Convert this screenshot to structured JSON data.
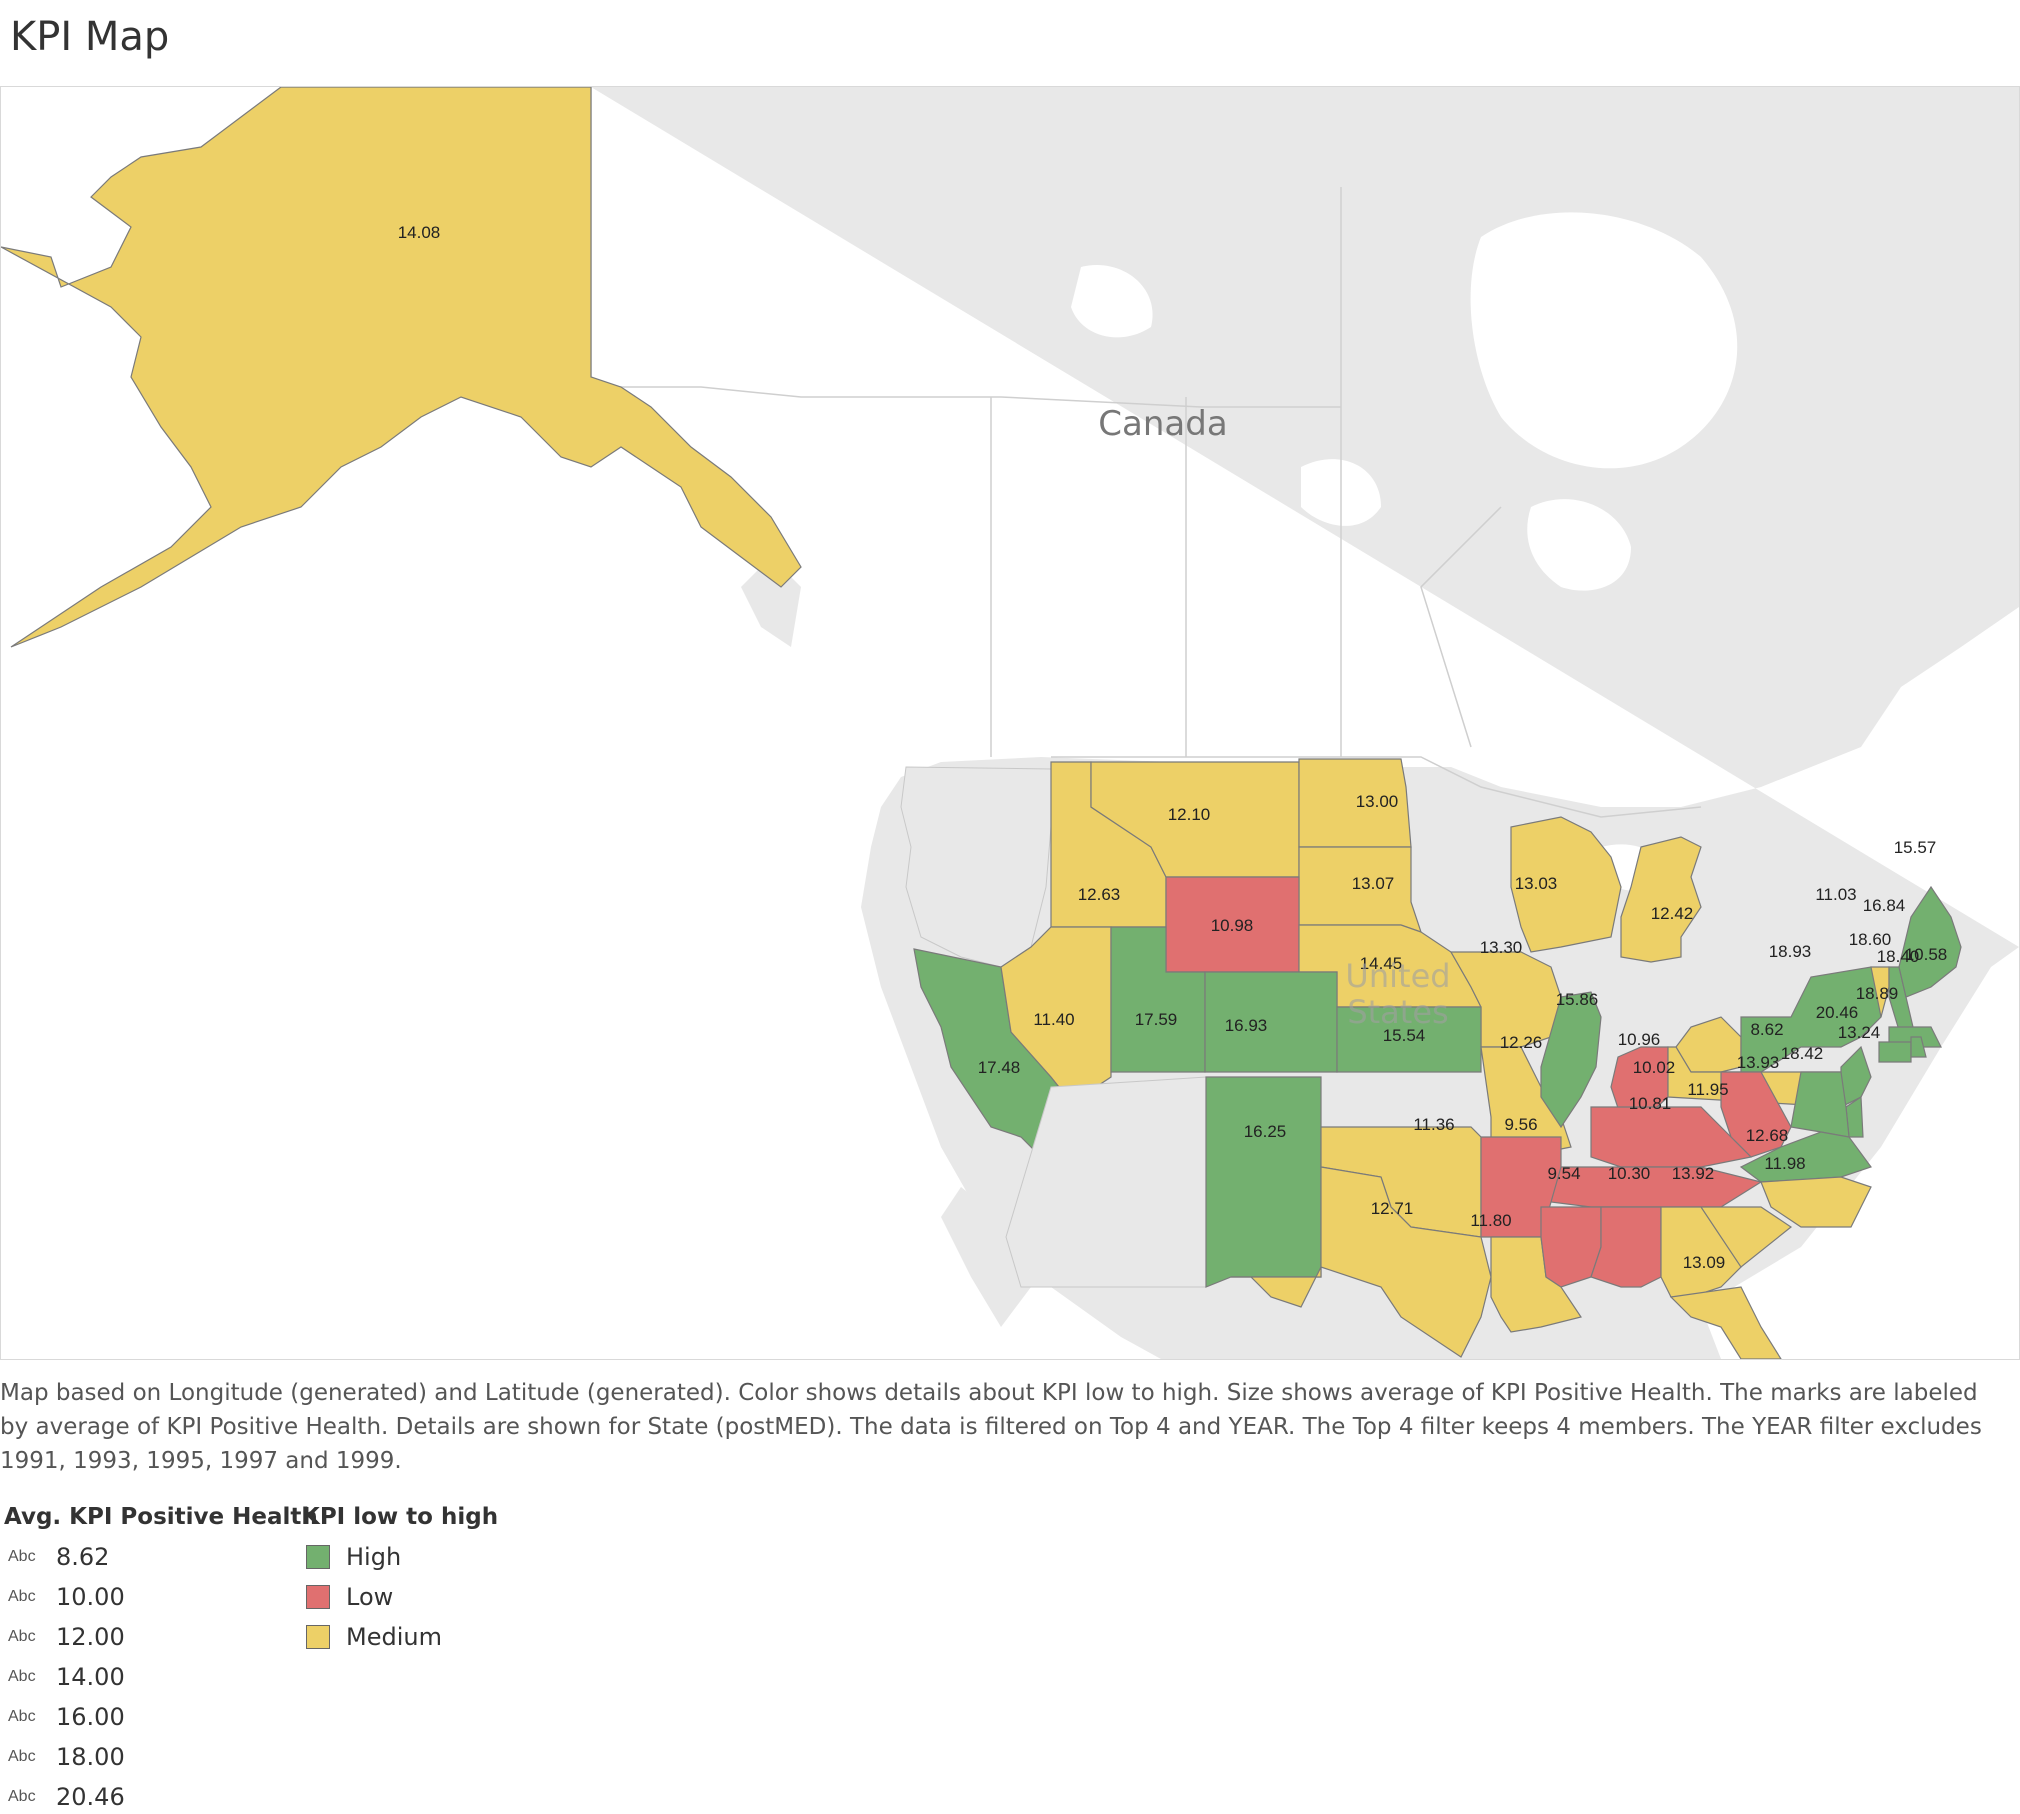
{
  "title": "KPI Map",
  "map": {
    "country_labels": [
      "Canada",
      "United",
      "States"
    ],
    "colors": {
      "High": "#73b06f",
      "Low": "#e07070",
      "Medium": "#edd067",
      "land": "#e8e8e8",
      "water": "#ffffff",
      "border": "#c8c8c8",
      "state_outline": "#7a7a7a"
    },
    "regions": [
      {
        "state": "Alaska",
        "value": "14.08",
        "category": "Medium"
      },
      {
        "state": "Washington/Oregon",
        "value": "",
        "category": "Unshaded"
      },
      {
        "state": "Idaho",
        "value": "12.63",
        "category": "Medium"
      },
      {
        "state": "Montana",
        "value": "12.10",
        "category": "Medium"
      },
      {
        "state": "North Dakota",
        "value": "13.00",
        "category": "Medium"
      },
      {
        "state": "South Dakota",
        "value": "13.07",
        "category": "Medium"
      },
      {
        "state": "Wyoming",
        "value": "10.98",
        "category": "Low"
      },
      {
        "state": "Nebraska",
        "value": "14.45",
        "category": "Medium"
      },
      {
        "state": "Iowa",
        "value": "13.30",
        "category": "Medium"
      },
      {
        "state": "Wisconsin",
        "value": "13.03",
        "category": "Medium"
      },
      {
        "state": "Michigan",
        "value": "12.42",
        "category": "Medium"
      },
      {
        "state": "California",
        "value": "17.48",
        "category": "High"
      },
      {
        "state": "Nevada",
        "value": "11.40",
        "category": "Medium"
      },
      {
        "state": "Utah",
        "value": "17.59",
        "category": "High"
      },
      {
        "state": "Colorado",
        "value": "16.93",
        "category": "High"
      },
      {
        "state": "Kansas",
        "value": "15.54",
        "category": "High"
      },
      {
        "state": "Missouri",
        "value": "12.26",
        "category": "Medium"
      },
      {
        "state": "Illinois",
        "value": "15.86",
        "category": "High"
      },
      {
        "state": "Indiana",
        "value": "10.96",
        "category": "Low"
      },
      {
        "state": "Ohio",
        "value": "11.95",
        "category": "Medium"
      },
      {
        "state": "Pennsylvania",
        "value": "13.93",
        "category": "Medium"
      },
      {
        "state": "New York",
        "value": "18.93",
        "category": "High"
      },
      {
        "state": "Vermont",
        "value": "11.03",
        "category": "Medium"
      },
      {
        "state": "New Hampshire",
        "value": "16.84",
        "category": "High"
      },
      {
        "state": "Maine",
        "value": "15.57",
        "category": "High"
      },
      {
        "state": "Massachusetts",
        "value": "18.60",
        "category": "High"
      },
      {
        "state": "Connecticut",
        "value": "18.40",
        "category": "High"
      },
      {
        "state": "Rhode Island",
        "value": "10.58",
        "category": "High"
      },
      {
        "state": "New Jersey",
        "value": "18.89",
        "category": "High"
      },
      {
        "state": "Delaware",
        "value": "13.24",
        "category": "High"
      },
      {
        "state": "Maryland",
        "value": "20.46",
        "category": "High"
      },
      {
        "state": "West Virginia",
        "value": "8.62",
        "category": "Low"
      },
      {
        "state": "Virginia",
        "value": "18.42",
        "category": "High"
      },
      {
        "state": "Kentucky",
        "value": "10.02",
        "category": "Low"
      },
      {
        "state": "Tennessee",
        "value": "10.81",
        "category": "Low"
      },
      {
        "state": "North Carolina",
        "value": "12.68",
        "category": "Medium"
      },
      {
        "state": "South Carolina",
        "value": "11.98",
        "category": "Medium"
      },
      {
        "state": "Arizona",
        "value": "",
        "category": "Unshaded"
      },
      {
        "state": "New Mexico",
        "value": "16.25",
        "category": "High"
      },
      {
        "state": "Oklahoma",
        "value": "11.36",
        "category": "Medium"
      },
      {
        "state": "Arkansas",
        "value": "9.56",
        "category": "Low"
      },
      {
        "state": "Texas",
        "value": "12.71",
        "category": "Medium"
      },
      {
        "state": "Louisiana",
        "value": "11.80",
        "category": "Medium"
      },
      {
        "state": "Mississippi",
        "value": "9.54",
        "category": "Low"
      },
      {
        "state": "Alabama",
        "value": "10.30",
        "category": "Low"
      },
      {
        "state": "Georgia",
        "value": "13.92",
        "category": "Medium"
      },
      {
        "state": "Florida",
        "value": "13.09",
        "category": "Medium"
      }
    ]
  },
  "caption": "Map based on Longitude (generated) and Latitude (generated).  Color shows details about KPI low to high.  Size shows average of KPI Positive Health.  The marks are labeled by average of KPI Positive Health.  Details are shown for State (postMED). The data is filtered on Top 4 and YEAR. The Top 4 filter keeps 4 members. The YEAR filter excludes 1991, 1993, 1995, 1997 and 1999.",
  "legend_size": {
    "title": "Avg. KPI Positive Health",
    "marker": "Abc",
    "items": [
      "8.62",
      "10.00",
      "12.00",
      "14.00",
      "16.00",
      "18.00",
      "20.46"
    ]
  },
  "legend_color": {
    "title": "KPI low to high",
    "items": [
      {
        "label": "High",
        "color": "#73b06f"
      },
      {
        "label": "Low",
        "color": "#e07070"
      },
      {
        "label": "Medium",
        "color": "#edd067"
      }
    ]
  }
}
